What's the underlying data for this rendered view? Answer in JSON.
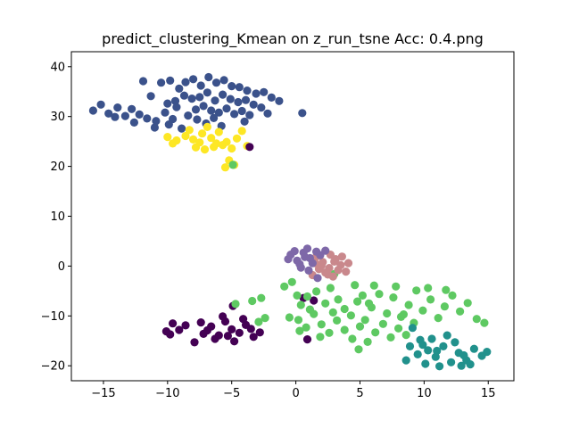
{
  "chart_data": {
    "type": "scatter",
    "title": "predict_clustering_Kmean on z_run_tsne  Acc: 0.4.png",
    "xlabel": "",
    "ylabel": "",
    "xlim": [
      -17.5,
      17.0
    ],
    "ylim": [
      -23.0,
      43.0
    ],
    "grid": false,
    "legend": "none",
    "x_ticks": [
      -15,
      -10,
      -5,
      0,
      5,
      10,
      15
    ],
    "y_ticks": [
      -20,
      -10,
      0,
      10,
      20,
      30,
      40
    ],
    "x_tick_labels": [
      "−15",
      "−10",
      "−5",
      "0",
      "5",
      "10",
      "15"
    ],
    "y_tick_labels": [
      "−20",
      "−10",
      "0",
      "10",
      "20",
      "30",
      "40"
    ],
    "colors": {
      "cluster_0": "#440154",
      "cluster_1": "#3b528b",
      "cluster_2": "#5ec962",
      "cluster_3": "#21918c",
      "cluster_4": "#fde725",
      "cluster_5": "#c9888c",
      "cluster_6": "#7e68a8"
    },
    "series": [
      {
        "name": "cluster_1",
        "color": "#3b528b",
        "points": [
          [
            -15.8,
            31.2
          ],
          [
            -15.2,
            32.4
          ],
          [
            -14.6,
            30.6
          ],
          [
            -13.9,
            31.8
          ],
          [
            -13.3,
            30.1
          ],
          [
            -12.8,
            31.5
          ],
          [
            -14.1,
            29.9
          ],
          [
            -12.2,
            30.4
          ],
          [
            -11.6,
            29.6
          ],
          [
            -10.9,
            29.1
          ],
          [
            -10.2,
            30.8
          ],
          [
            -9.6,
            29.5
          ],
          [
            -9.9,
            28.4
          ],
          [
            -11.3,
            34.1
          ],
          [
            -10.5,
            36.8
          ],
          [
            -9.8,
            37.2
          ],
          [
            -9.1,
            35.6
          ],
          [
            -8.6,
            36.9
          ],
          [
            -8.0,
            37.5
          ],
          [
            -7.4,
            36.2
          ],
          [
            -6.8,
            37.9
          ],
          [
            -6.2,
            36.8
          ],
          [
            -5.6,
            37.3
          ],
          [
            -5.0,
            36.1
          ],
          [
            -4.4,
            35.9
          ],
          [
            -3.8,
            35.2
          ],
          [
            -3.1,
            34.6
          ],
          [
            -2.5,
            34.9
          ],
          [
            -1.9,
            33.8
          ],
          [
            -1.3,
            33.1
          ],
          [
            -8.7,
            34.2
          ],
          [
            -8.1,
            33.6
          ],
          [
            -7.5,
            33.9
          ],
          [
            -6.9,
            34.8
          ],
          [
            -6.3,
            33.2
          ],
          [
            -5.7,
            34.4
          ],
          [
            -5.1,
            33.5
          ],
          [
            -4.5,
            32.9
          ],
          [
            -3.9,
            33.3
          ],
          [
            -3.3,
            32.4
          ],
          [
            -2.7,
            31.8
          ],
          [
            -7.8,
            31.4
          ],
          [
            -7.2,
            32.1
          ],
          [
            -6.6,
            31.2
          ],
          [
            -6.0,
            30.8
          ],
          [
            -5.4,
            31.6
          ],
          [
            -4.8,
            30.5
          ],
          [
            -4.2,
            31.1
          ],
          [
            -3.6,
            30.3
          ],
          [
            -9.3,
            31.9
          ],
          [
            -8.4,
            30.2
          ],
          [
            -7.7,
            29.4
          ],
          [
            -7.0,
            28.6
          ],
          [
            -6.4,
            29.7
          ],
          [
            -5.8,
            28.1
          ],
          [
            -11.9,
            37.1
          ],
          [
            -10.0,
            32.6
          ],
          [
            -12.6,
            28.8
          ],
          [
            -11.0,
            27.8
          ],
          [
            -8.9,
            27.6
          ],
          [
            -4.0,
            29.0
          ],
          [
            0.5,
            30.7
          ],
          [
            -2.2,
            30.6
          ],
          [
            -9.4,
            33.1
          ]
        ]
      },
      {
        "name": "cluster_4",
        "color": "#fde725",
        "points": [
          [
            -10.0,
            25.9
          ],
          [
            -9.3,
            25.2
          ],
          [
            -8.6,
            26.1
          ],
          [
            -8.0,
            25.4
          ],
          [
            -7.3,
            26.6
          ],
          [
            -6.6,
            25.7
          ],
          [
            -6.0,
            26.9
          ],
          [
            -5.4,
            24.9
          ],
          [
            -7.8,
            23.8
          ],
          [
            -7.1,
            23.4
          ],
          [
            -6.4,
            23.9
          ],
          [
            -5.7,
            24.3
          ],
          [
            -5.0,
            23.6
          ],
          [
            -4.6,
            25.6
          ],
          [
            -4.2,
            27.1
          ],
          [
            -6.9,
            27.9
          ],
          [
            -8.3,
            27.3
          ],
          [
            -5.2,
            21.2
          ],
          [
            -4.8,
            20.3
          ],
          [
            -5.5,
            19.8
          ],
          [
            -9.6,
            24.6
          ],
          [
            -3.8,
            24.1
          ],
          [
            -6.2,
            24.6
          ],
          [
            -7.5,
            24.8
          ]
        ]
      },
      {
        "name": "cluster_0",
        "color": "#440154",
        "points": [
          [
            -9.6,
            -11.5
          ],
          [
            -9.1,
            -12.8
          ],
          [
            -9.8,
            -13.7
          ],
          [
            -8.6,
            -11.9
          ],
          [
            -7.9,
            -15.3
          ],
          [
            -7.2,
            -13.6
          ],
          [
            -6.6,
            -12.1
          ],
          [
            -6.0,
            -13.9
          ],
          [
            -5.5,
            -11.1
          ],
          [
            -5.0,
            -12.7
          ],
          [
            -4.4,
            -13.4
          ],
          [
            -3.9,
            -11.8
          ],
          [
            -3.3,
            -14.2
          ],
          [
            -4.8,
            -15.1
          ],
          [
            -6.3,
            -14.6
          ],
          [
            -5.7,
            -10.1
          ],
          [
            -4.9,
            -8.0
          ],
          [
            -7.4,
            -11.3
          ],
          [
            -3.5,
            -12.6
          ],
          [
            -6.9,
            -12.9
          ],
          [
            -5.3,
            -14.0
          ],
          [
            -4.1,
            -10.6
          ],
          [
            -2.8,
            -13.3
          ],
          [
            0.6,
            -6.4
          ],
          [
            1.4,
            -6.9
          ],
          [
            -3.6,
            23.9
          ],
          [
            0.9,
            -14.7
          ],
          [
            -10.1,
            -13.1
          ]
        ]
      },
      {
        "name": "cluster_2",
        "color": "#5ec962",
        "points": [
          [
            -4.7,
            -7.6
          ],
          [
            -3.4,
            -7.0
          ],
          [
            -2.7,
            -6.4
          ],
          [
            -2.4,
            -10.4
          ],
          [
            -2.9,
            -11.2
          ],
          [
            -0.9,
            -4.1
          ],
          [
            -0.3,
            -3.2
          ],
          [
            0.1,
            -5.9
          ],
          [
            0.4,
            -7.8
          ],
          [
            0.9,
            -6.1
          ],
          [
            1.6,
            -5.1
          ],
          [
            2.3,
            -7.5
          ],
          [
            2.7,
            -4.4
          ],
          [
            3.3,
            -6.7
          ],
          [
            3.8,
            -8.6
          ],
          [
            4.3,
            -9.9
          ],
          [
            4.8,
            -7.1
          ],
          [
            5.4,
            -10.8
          ],
          [
            5.9,
            -8.3
          ],
          [
            6.5,
            -5.6
          ],
          [
            7.1,
            -9.5
          ],
          [
            7.6,
            -6.3
          ],
          [
            8.2,
            -10.2
          ],
          [
            8.8,
            -7.8
          ],
          [
            9.4,
            -4.9
          ],
          [
            9.9,
            -8.9
          ],
          [
            10.5,
            -6.7
          ],
          [
            11.1,
            -10.4
          ],
          [
            11.6,
            -8.1
          ],
          [
            12.2,
            -5.9
          ],
          [
            12.8,
            -9.1
          ],
          [
            13.4,
            -7.4
          ],
          [
            14.1,
            -10.6
          ],
          [
            14.7,
            -11.4
          ],
          [
            0.2,
            -10.8
          ],
          [
            0.8,
            -12.3
          ],
          [
            1.4,
            -9.6
          ],
          [
            2.0,
            -11.7
          ],
          [
            2.6,
            -13.4
          ],
          [
            3.2,
            -10.9
          ],
          [
            3.8,
            -12.8
          ],
          [
            4.4,
            -14.6
          ],
          [
            5.0,
            -12.1
          ],
          [
            5.6,
            -15.2
          ],
          [
            6.2,
            -13.3
          ],
          [
            6.8,
            -11.6
          ],
          [
            7.4,
            -14.3
          ],
          [
            8.0,
            -12.5
          ],
          [
            8.6,
            -13.8
          ],
          [
            9.2,
            -11.4
          ],
          [
            4.9,
            -16.7
          ],
          [
            1.9,
            -14.2
          ],
          [
            0.3,
            -13.0
          ],
          [
            4.6,
            -3.8
          ],
          [
            5.2,
            -5.9
          ],
          [
            6.1,
            -3.9
          ],
          [
            7.8,
            -4.1
          ],
          [
            10.3,
            -4.4
          ],
          [
            11.7,
            -4.8
          ],
          [
            3.0,
            -1.6
          ],
          [
            -4.9,
            20.3
          ],
          [
            -0.5,
            -10.3
          ],
          [
            1.1,
            -8.7
          ],
          [
            2.9,
            -9.3
          ],
          [
            5.7,
            -7.5
          ],
          [
            8.4,
            -9.7
          ]
        ]
      },
      {
        "name": "cluster_3",
        "color": "#21918c",
        "points": [
          [
            9.1,
            -12.4
          ],
          [
            9.7,
            -14.8
          ],
          [
            10.3,
            -16.9
          ],
          [
            10.9,
            -18.2
          ],
          [
            11.5,
            -16.1
          ],
          [
            12.1,
            -19.3
          ],
          [
            12.7,
            -17.4
          ],
          [
            13.3,
            -18.9
          ],
          [
            13.9,
            -16.6
          ],
          [
            14.5,
            -18.0
          ],
          [
            10.1,
            -19.6
          ],
          [
            11.2,
            -20.1
          ],
          [
            12.4,
            -15.3
          ],
          [
            13.6,
            -19.7
          ],
          [
            9.5,
            -17.7
          ],
          [
            11.8,
            -13.9
          ],
          [
            10.6,
            -14.6
          ],
          [
            8.6,
            -18.9
          ],
          [
            12.9,
            -20.0
          ],
          [
            11.0,
            -17.0
          ],
          [
            9.9,
            -15.8
          ],
          [
            13.1,
            -17.9
          ],
          [
            14.9,
            -17.2
          ],
          [
            8.9,
            -16.1
          ]
        ]
      },
      {
        "name": "cluster_5",
        "color": "#c9888c",
        "points": [
          [
            1.6,
            1.9
          ],
          [
            2.1,
            0.8
          ],
          [
            2.6,
            -0.4
          ],
          [
            3.1,
            1.4
          ],
          [
            3.5,
            0.2
          ],
          [
            3.9,
            -1.1
          ],
          [
            2.3,
            -1.3
          ],
          [
            1.8,
            -0.6
          ],
          [
            2.9,
            -2.1
          ],
          [
            3.6,
            1.9
          ],
          [
            4.1,
            0.6
          ],
          [
            1.3,
            -1.8
          ],
          [
            2.7,
            2.3
          ],
          [
            3.3,
            -0.8
          ],
          [
            2.0,
            0.1
          ],
          [
            3.0,
            0.9
          ],
          [
            1.5,
            0.6
          ],
          [
            2.5,
            -1.7
          ]
        ]
      },
      {
        "name": "cluster_6",
        "color": "#7e68a8",
        "points": [
          [
            -0.4,
            2.3
          ],
          [
            0.1,
            1.1
          ],
          [
            0.6,
            2.7
          ],
          [
            1.1,
            1.6
          ],
          [
            1.6,
            2.9
          ],
          [
            0.3,
            0.4
          ],
          [
            0.9,
            3.5
          ],
          [
            -0.1,
            3.0
          ],
          [
            1.3,
            0.6
          ],
          [
            0.7,
            1.8
          ],
          [
            -0.6,
            1.4
          ],
          [
            1.9,
            2.2
          ],
          [
            0.4,
            -0.3
          ],
          [
            2.3,
            3.1
          ],
          [
            1.0,
            -0.9
          ],
          [
            1.7,
            -2.4
          ]
        ]
      }
    ]
  }
}
